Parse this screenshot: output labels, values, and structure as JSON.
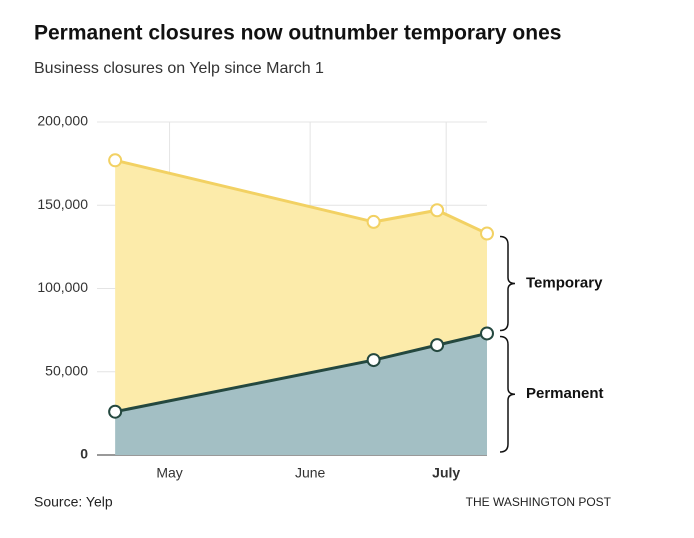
{
  "chart_data": {
    "type": "stacked-area",
    "title": "Permanent closures now outnumber temporary ones",
    "subtitle": "Business closures on Yelp since March 1",
    "x": [
      49,
      106,
      120,
      131
    ],
    "xlim": [
      45,
      131
    ],
    "xticks": [
      {
        "value": 61,
        "label": "May"
      },
      {
        "value": 92,
        "label": "June"
      },
      {
        "value": 122,
        "label": "July"
      }
    ],
    "series": [
      {
        "name": "Permanent",
        "color": "#24483f",
        "fill": "#a3bfc4",
        "values": [
          26000,
          57000,
          66000,
          73000
        ]
      },
      {
        "name": "Temporary",
        "color": "#f2d163",
        "fill": "#fcebaa",
        "values": [
          151000,
          83000,
          81000,
          60000
        ]
      }
    ],
    "ylim": [
      0,
      200000
    ],
    "yticks": [
      0,
      {
        "value": 50000,
        "label": "50,000"
      },
      {
        "value": 100000,
        "label": "100,000"
      },
      {
        "value": 150000,
        "label": "150,000"
      },
      {
        "value": 200000,
        "label": "200,000"
      }
    ],
    "grid": true,
    "source": "Source: Yelp",
    "credit": "THE WASHINGTON POST"
  }
}
